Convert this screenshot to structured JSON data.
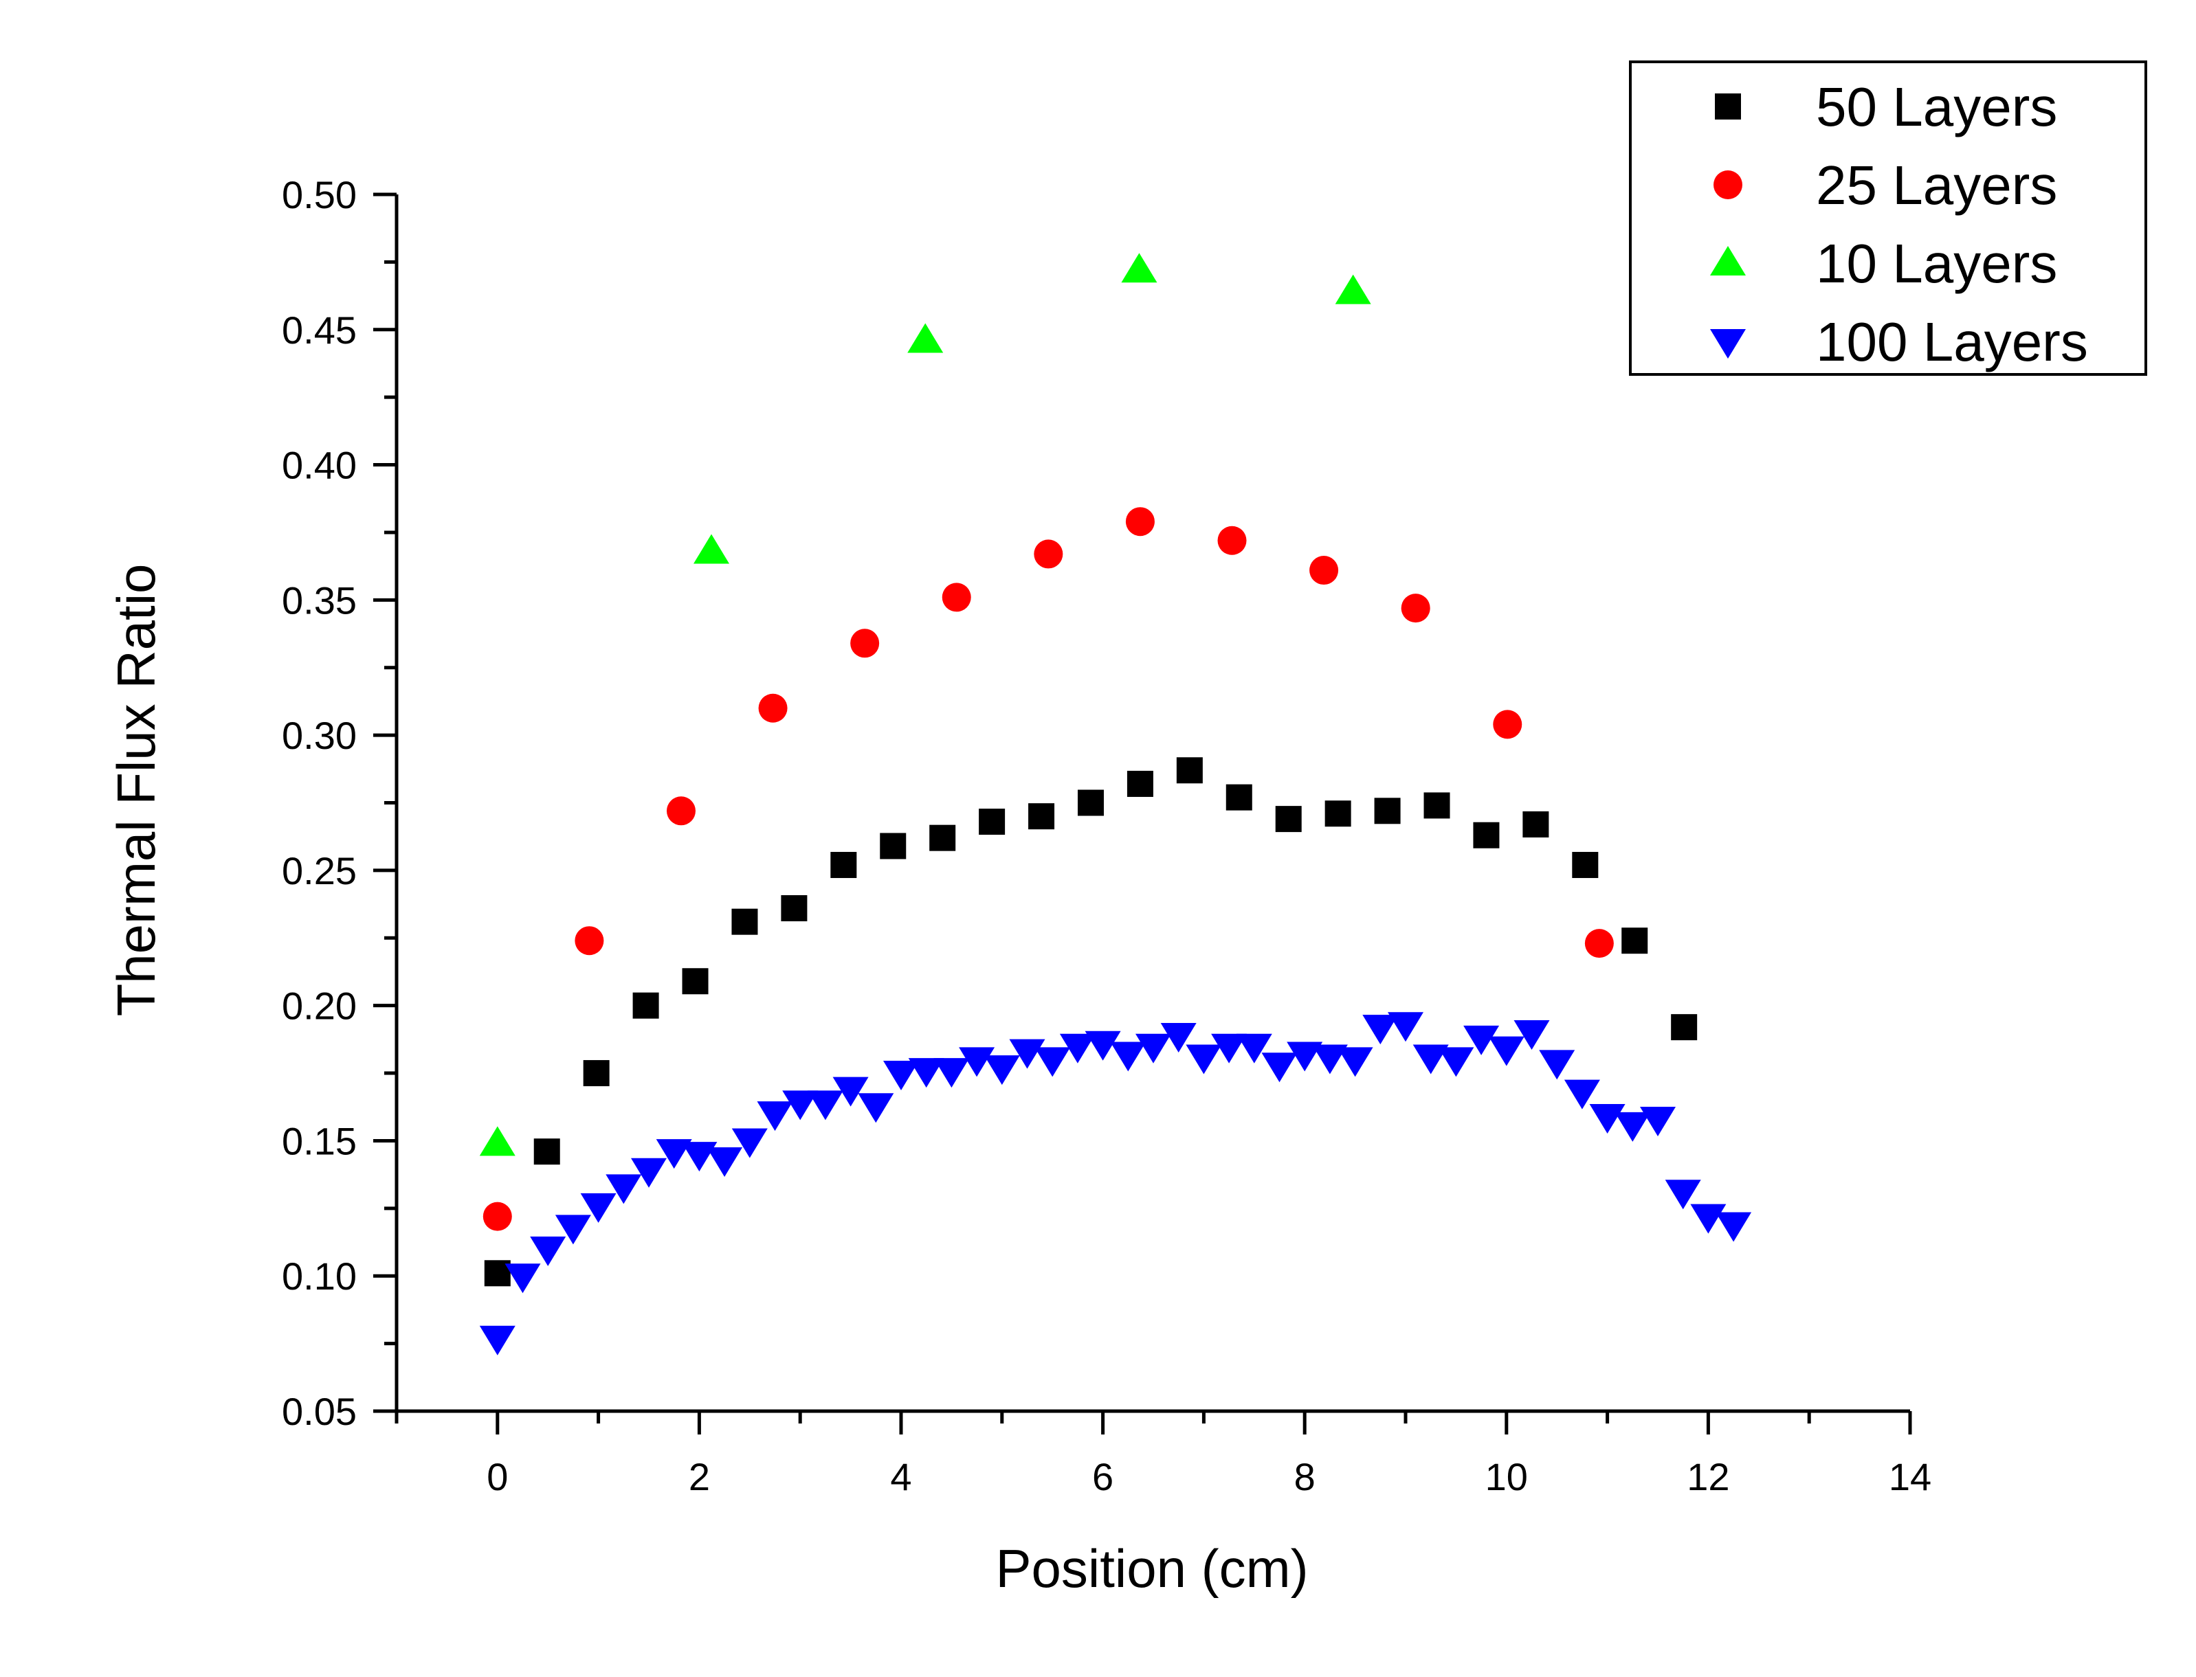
{
  "chart_data": {
    "type": "scatter",
    "title": "",
    "xlabel": "Position (cm)",
    "ylabel": "Thermal Flux Ratio",
    "xlim": [
      -1,
      14
    ],
    "ylim": [
      0.05,
      0.5
    ],
    "x_ticks": [
      0,
      2,
      4,
      6,
      8,
      10,
      12,
      14
    ],
    "x_tick_labels": [
      "0",
      "2",
      "4",
      "6",
      "8",
      "10",
      "12",
      "14"
    ],
    "y_ticks": [
      0.05,
      0.1,
      0.15,
      0.2,
      0.25,
      0.3,
      0.35,
      0.4,
      0.45,
      0.5
    ],
    "y_tick_labels": [
      "0.05",
      "0.10",
      "0.15",
      "0.20",
      "0.25",
      "0.30",
      "0.35",
      "0.40",
      "0.45",
      "0.50"
    ],
    "grid": false,
    "legend_position": "top-right",
    "series": [
      {
        "name": "50 Layers",
        "marker": "square",
        "color": "#000000",
        "x": [
          0,
          0.49,
          0.98,
          1.47,
          1.96,
          2.45,
          2.94,
          3.43,
          3.92,
          4.41,
          4.9,
          5.39,
          5.88,
          6.37,
          6.86,
          7.35,
          7.84,
          8.33,
          8.82,
          9.31,
          9.8,
          10.29,
          10.78,
          11.27,
          11.76
        ],
        "y": [
          0.101,
          0.146,
          0.175,
          0.2,
          0.209,
          0.231,
          0.236,
          0.252,
          0.259,
          0.262,
          0.268,
          0.27,
          0.275,
          0.282,
          0.287,
          0.277,
          0.269,
          0.271,
          0.272,
          0.274,
          0.263,
          0.267,
          0.252,
          0.224,
          0.192
        ]
      },
      {
        "name": "25 Layers",
        "marker": "circle",
        "color": "#ff0000",
        "x": [
          0,
          0.91,
          1.82,
          2.73,
          3.64,
          4.55,
          5.46,
          6.37,
          7.28,
          8.19,
          9.1,
          10.01,
          10.92
        ],
        "y": [
          0.122,
          0.224,
          0.272,
          0.31,
          0.334,
          0.351,
          0.367,
          0.379,
          0.372,
          0.361,
          0.347,
          0.304,
          0.223
        ]
      },
      {
        "name": "10 Layers",
        "marker": "triangle-up",
        "color": "#00ff00",
        "x": [
          0,
          2.12,
          4.24,
          6.36,
          8.48
        ],
        "y": [
          0.149,
          0.368,
          0.446,
          0.472,
          0.464
        ]
      },
      {
        "name": "100 Layers",
        "marker": "triangle-down",
        "color": "#0000ff",
        "x": [
          0,
          0.25,
          0.5,
          0.75,
          1.0,
          1.25,
          1.5,
          1.75,
          2.0,
          2.25,
          2.5,
          2.75,
          3.0,
          3.25,
          3.5,
          3.75,
          4.0,
          4.25,
          4.5,
          4.75,
          5.0,
          5.25,
          5.5,
          5.75,
          6.0,
          6.25,
          6.5,
          6.75,
          7.0,
          7.25,
          7.5,
          7.75,
          8.0,
          8.25,
          8.5,
          8.75,
          9.0,
          9.25,
          9.5,
          9.75,
          10.0,
          10.25,
          10.5,
          10.75,
          11.0,
          11.25,
          11.5,
          11.75,
          12.0,
          12.25
        ],
        "y": [
          0.077,
          0.1,
          0.11,
          0.118,
          0.126,
          0.133,
          0.139,
          0.146,
          0.145,
          0.143,
          0.15,
          0.16,
          0.164,
          0.164,
          0.169,
          0.163,
          0.175,
          0.176,
          0.176,
          0.18,
          0.177,
          0.183,
          0.18,
          0.185,
          0.186,
          0.182,
          0.185,
          0.189,
          0.181,
          0.185,
          0.185,
          0.178,
          0.182,
          0.181,
          0.18,
          0.192,
          0.193,
          0.181,
          0.18,
          0.188,
          0.184,
          0.19,
          0.179,
          0.168,
          0.159,
          0.156,
          0.158,
          0.131,
          0.122,
          0.119
        ]
      }
    ]
  }
}
